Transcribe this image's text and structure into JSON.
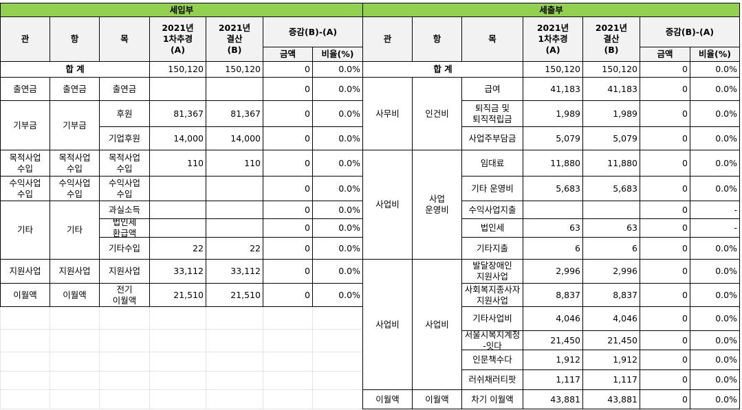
{
  "headers": {
    "revenue_title": "세입부",
    "expense_title": "세출부",
    "gwan": "관",
    "hang": "항",
    "mok": "목",
    "budget": "2021년\n1차추경\n(A)",
    "settle": "2021년\n결산\n(B)",
    "diff": "증감(B)-(A)",
    "amount": "금액",
    "ratio": "비율(%)"
  },
  "colors": {
    "title_band": "#92d050",
    "header_fill": "#f2f2f2",
    "grid_line": "#e3e3e3",
    "border": "#000000"
  },
  "totals": {
    "revenue": {
      "label": "합 계",
      "budget": "150,120",
      "settle": "150,120",
      "amount": "0",
      "ratio": "0.0%"
    },
    "expense": {
      "label": "합 계",
      "budget": "150,120",
      "settle": "150,120",
      "amount": "0",
      "ratio": "0.0%"
    }
  },
  "revenue": {
    "groups": [
      {
        "gwan": "출연금",
        "hang": "출연금"
      },
      {
        "gwan": "기부금",
        "hang": "기부금"
      },
      {
        "gwan": "목적사업\n수입",
        "hang": "목적사업\n수입"
      },
      {
        "gwan": "수익사업\n수입",
        "hang": "수익사업\n수입"
      },
      {
        "gwan": "기타",
        "hang": "기타"
      },
      {
        "gwan": "지원사업",
        "hang": "지원사업"
      },
      {
        "gwan": "이월액",
        "hang": "이월액"
      }
    ],
    "rows": [
      {
        "mok": "출연금",
        "budget": "",
        "settle": "",
        "amount": "0",
        "ratio": "0.0%"
      },
      {
        "mok": "후원",
        "budget": "81,367",
        "settle": "81,367",
        "amount": "0",
        "ratio": "0.0%"
      },
      {
        "mok": "기업후원",
        "budget": "14,000",
        "settle": "14,000",
        "amount": "0",
        "ratio": "0.0%"
      },
      {
        "mok": "목적사업\n수입",
        "budget": "110",
        "settle": "110",
        "amount": "0",
        "ratio": "0.0%"
      },
      {
        "mok": "수익사업\n수입",
        "budget": "",
        "settle": "",
        "amount": "0",
        "ratio": "0.0%"
      },
      {
        "mok": "과실소득",
        "budget": "",
        "settle": "",
        "amount": "0",
        "ratio": "0.0%"
      },
      {
        "mok": "법인세\n환급액",
        "budget": "",
        "settle": "",
        "amount": "0",
        "ratio": "0.0%"
      },
      {
        "mok": "기타수입",
        "budget": "22",
        "settle": "22",
        "amount": "0",
        "ratio": "0.0%"
      },
      {
        "mok": "지원사업",
        "budget": "33,112",
        "settle": "33,112",
        "amount": "0",
        "ratio": "0.0%"
      },
      {
        "mok": "전기\n이월액",
        "budget": "21,510",
        "settle": "21,510",
        "amount": "0",
        "ratio": "0.0%"
      }
    ]
  },
  "expense": {
    "groups": [
      {
        "gwan": "사무비",
        "hang": "인건비"
      },
      {
        "gwan": "사업비",
        "hang": "사업\n운영비"
      },
      {
        "gwan": "사업비",
        "hang": "사업비"
      },
      {
        "gwan": "이월액",
        "hang": "이월액"
      }
    ],
    "rows": [
      {
        "mok": "급여",
        "budget": "41,183",
        "settle": "41,183",
        "amount": "0",
        "ratio": "0.0%"
      },
      {
        "mok": "퇴직금 및\n퇴직적립금",
        "budget": "1,989",
        "settle": "1,989",
        "amount": "0",
        "ratio": "0.0%"
      },
      {
        "mok": "사업주부담금",
        "budget": "5,079",
        "settle": "5,079",
        "amount": "0",
        "ratio": "0.0%"
      },
      {
        "mok": "임대료",
        "budget": "11,880",
        "settle": "11,880",
        "amount": "0",
        "ratio": "0.0%"
      },
      {
        "mok": "기타 운영비",
        "budget": "5,683",
        "settle": "5,683",
        "amount": "0",
        "ratio": "0.0%"
      },
      {
        "mok": "수익사업지출",
        "budget": "",
        "settle": "",
        "amount": "0",
        "ratio": "-"
      },
      {
        "mok": "법인세",
        "budget": "63",
        "settle": "63",
        "amount": "0",
        "ratio": "-"
      },
      {
        "mok": "기타지출",
        "budget": "6",
        "settle": "6",
        "amount": "0",
        "ratio": "0.0%"
      },
      {
        "mok": "발달장애인\n지원사업",
        "budget": "2,996",
        "settle": "2,996",
        "amount": "0",
        "ratio": "0.0%"
      },
      {
        "mok": "사회복지종사자\n지원사업",
        "budget": "8,837",
        "settle": "8,837",
        "amount": "0",
        "ratio": "0.0%"
      },
      {
        "mok": "기타사업비",
        "budget": "4,046",
        "settle": "4,046",
        "amount": "0",
        "ratio": "0.0%"
      },
      {
        "mok": "서울시복지계정\n-잇다",
        "budget": "21,450",
        "settle": "21,450",
        "amount": "0",
        "ratio": "0.0%"
      },
      {
        "mok": "인문책수다",
        "budget": "1,912",
        "settle": "1,912",
        "amount": "0",
        "ratio": "0.0%"
      },
      {
        "mok": "러쉬채러티팟",
        "budget": "1,117",
        "settle": "1,117",
        "amount": "0",
        "ratio": "0.0%"
      },
      {
        "mok": "차기 이월액",
        "budget": "43,881",
        "settle": "43,881",
        "amount": "0",
        "ratio": "0.0%"
      }
    ]
  }
}
